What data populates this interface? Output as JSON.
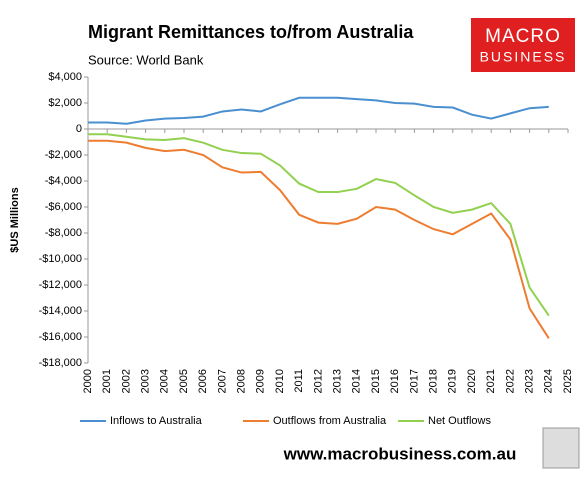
{
  "chart_data": {
    "type": "line",
    "title": "Migrant Remittances to/from Australia",
    "subtitle": "Source: World Bank",
    "logo": {
      "line1": "MACRO",
      "line2": "BUSINESS"
    },
    "footer": "www.macrobusiness.com.au",
    "y_label": "$US Millions",
    "x": [
      2000,
      2001,
      2002,
      2003,
      2004,
      2005,
      2006,
      2007,
      2008,
      2009,
      2010,
      2011,
      2012,
      2013,
      2014,
      2015,
      2016,
      2017,
      2018,
      2019,
      2020,
      2021,
      2022,
      2023,
      2024
    ],
    "xlim": [
      2000,
      2025
    ],
    "xticks": [
      2000,
      2001,
      2002,
      2003,
      2004,
      2005,
      2006,
      2007,
      2008,
      2009,
      2010,
      2011,
      2012,
      2013,
      2014,
      2015,
      2016,
      2017,
      2018,
      2019,
      2020,
      2021,
      2022,
      2023,
      2024,
      2025
    ],
    "ylim": [
      -18000,
      4000
    ],
    "yticks": [
      {
        "value": 4000,
        "label": "$4,000"
      },
      {
        "value": 2000,
        "label": "$2,000"
      },
      0,
      {
        "value": -2000,
        "label": "-$2,000"
      },
      {
        "value": -4000,
        "label": "-$4,000"
      },
      {
        "value": -6000,
        "label": "-$6,000"
      },
      {
        "value": -8000,
        "label": "-$8,000"
      },
      {
        "value": -10000,
        "label": "-$10,000"
      },
      {
        "value": -12000,
        "label": "-$12,000"
      },
      {
        "value": -14000,
        "label": "-$14,000"
      },
      {
        "value": -16000,
        "label": "-$16,000"
      },
      {
        "value": -18000,
        "label": "-$18,000"
      }
    ],
    "grid": false,
    "legend": "bottom",
    "series": [
      {
        "name": "Inflows to Australia",
        "color": "#4a90d0",
        "values": [
          500,
          500,
          400,
          650,
          800,
          850,
          950,
          1350,
          1500,
          1350,
          1900,
          2400,
          2400,
          2400,
          2300,
          2200,
          2000,
          1950,
          1700,
          1650,
          1100,
          800,
          1200,
          1600,
          1700
        ]
      },
      {
        "name": "Outflows from Australia",
        "color": "#ed7d31",
        "values": [
          -900,
          -900,
          -1050,
          -1450,
          -1700,
          -1600,
          -2000,
          -2950,
          -3350,
          -3300,
          -4700,
          -6600,
          -7200,
          -7300,
          -6900,
          -6000,
          -6200,
          -7000,
          -7700,
          -8100,
          -7300,
          -6500,
          -8500,
          -13800,
          -16100
        ]
      },
      {
        "name": "Net Outflows",
        "color": "#92d050",
        "values": [
          -400,
          -400,
          -600,
          -800,
          -850,
          -700,
          -1050,
          -1600,
          -1850,
          -1900,
          -2800,
          -4200,
          -4850,
          -4850,
          -4600,
          -3850,
          -4150,
          -5100,
          -6000,
          -6450,
          -6200,
          -5700,
          -7300,
          -12200,
          -14350
        ]
      }
    ]
  }
}
